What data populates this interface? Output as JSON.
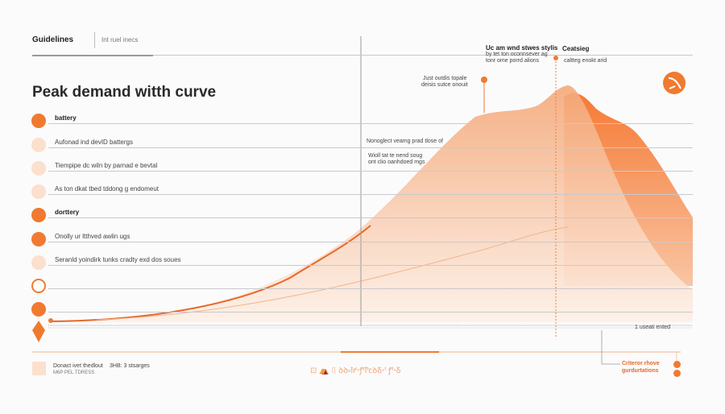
{
  "header": {
    "title": "Guidelines",
    "subtitle": "Int ruel inecs"
  },
  "page_title": "Peak demand witth curve",
  "legend": [
    {
      "label": "battery",
      "bold": true,
      "style": "solid"
    },
    {
      "label": "Aufonad ind devID battergs",
      "style": "light"
    },
    {
      "label": "Tiempipe dc wiln by parnad e bevtal",
      "style": "light-icon"
    },
    {
      "label": "As ton dkat tbed tddong g endomeut",
      "style": "light"
    },
    {
      "label": "dorttery",
      "bold": true,
      "style": "solid"
    },
    {
      "label": "Onolly ur ltthved awlin ugs",
      "style": "pin"
    },
    {
      "label": "Seranld yoindirk tunks cradty exd dos soues",
      "style": "light"
    },
    {
      "label": "",
      "style": "ring"
    },
    {
      "label": "",
      "style": "solid"
    }
  ],
  "annotations": {
    "peak_title": "Uc am wnd stwes stylis",
    "peak_sub1": "by tet ton oconnsever ag",
    "peak_sub2": "tonr ome porrd alions",
    "right_title": "Ceatsieg",
    "right_sub": "caltteg enokt arid",
    "left_note1": "Just outdis topale",
    "left_note2": "deisis sutce onouit",
    "mid_note": "Nonoglect veamg prad tlose of",
    "mid_note2": "Wioll tat te nend soug",
    "mid_note3": "ont clio oanhdoed mgs",
    "baseline_label": "1 useati ented",
    "callout1": "Criteror rhove",
    "callout2": "gurdurtations"
  },
  "footer": {
    "text1": "Donact ivet thedlout",
    "text2": "3HB: 3 stsarges",
    "text3": "M6P PEL.TDRESS",
    "center": "⊡ ⛺ ⌷ ꝺꝺ⸗ꝉꝵꞏꝭꞋꝉꞋꞇꝺꝽꞏꞋ ꝭꞋꞏꝽ"
  },
  "colors": {
    "accent": "#f07a30",
    "light": "#f7c9a8",
    "pale": "#fbe3d3"
  }
}
